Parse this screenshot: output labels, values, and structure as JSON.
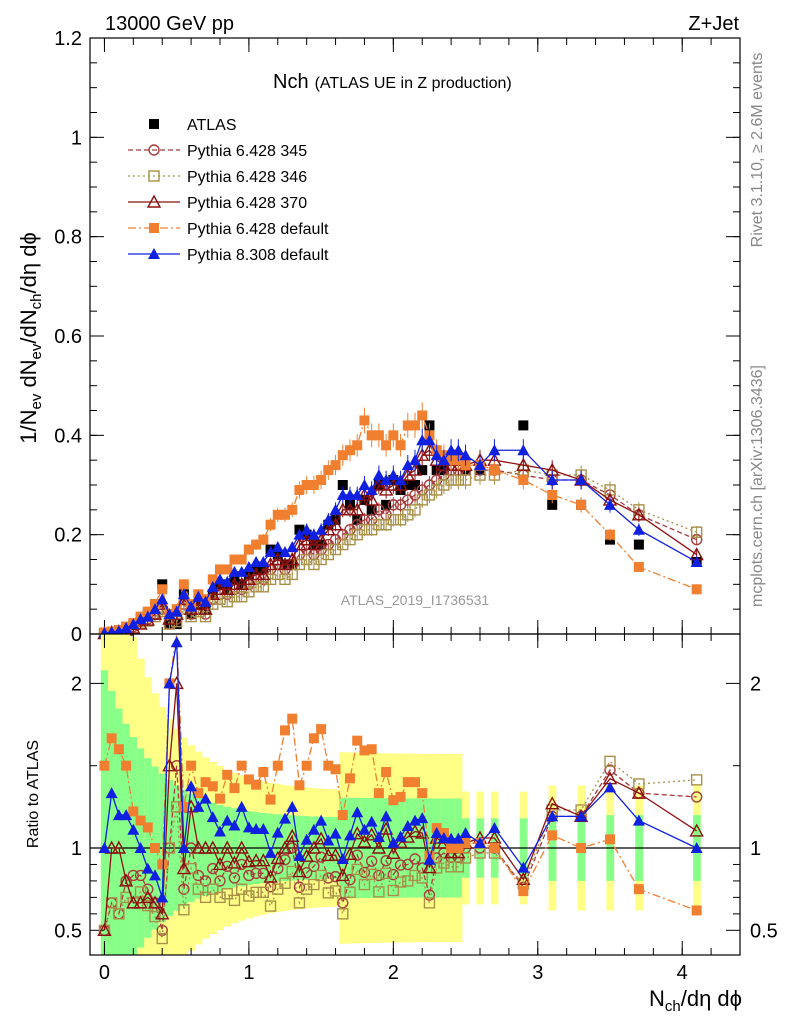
{
  "header": {
    "left": "13000 GeV pp",
    "right": "Z+Jet"
  },
  "side_notes": {
    "rivet": "Rivet 3.1.10, ≥ 2.6M events",
    "mcplots": "mcplots.cern.ch [arXiv:1306.3436]"
  },
  "watermark": "ATLAS_2019_I1736531",
  "colors": {
    "ATLAS": "#000000",
    "p345": "#a83b3b",
    "p346": "#a89048",
    "p370": "#8b1010",
    "p6def": "#f08030",
    "p8def": "#1020e0",
    "band_yellow": "#ffff88",
    "band_green": "#88ff88"
  },
  "chart_data": [
    {
      "type": "scatter",
      "title": "Nch",
      "title_suffix": "(ATLAS UE in Z production)",
      "xlabel": "N_ch/dη dϕ",
      "ylabel": "1/N_ev dN_ev/dN_ch/dη dϕ",
      "xlim": [
        -0.1,
        4.4
      ],
      "ylim": [
        0,
        1.2
      ],
      "yticks": [
        "0",
        "0.2",
        "0.4",
        "0.6",
        "0.8",
        "1",
        "1.2"
      ],
      "xticks": [
        "0",
        "1",
        "2",
        "3",
        "4"
      ],
      "legend_position": "top-left",
      "x": [
        0.0,
        0.05,
        0.1,
        0.15,
        0.2,
        0.25,
        0.3,
        0.35,
        0.4,
        0.45,
        0.5,
        0.55,
        0.6,
        0.65,
        0.7,
        0.75,
        0.8,
        0.85,
        0.9,
        0.95,
        1.0,
        1.05,
        1.1,
        1.15,
        1.2,
        1.25,
        1.3,
        1.35,
        1.4,
        1.45,
        1.5,
        1.55,
        1.6,
        1.65,
        1.7,
        1.75,
        1.8,
        1.85,
        1.9,
        1.95,
        2.0,
        2.05,
        2.1,
        2.15,
        2.2,
        2.25,
        2.3,
        2.35,
        2.4,
        2.45,
        2.5,
        2.6,
        2.7,
        2.9,
        3.1,
        3.3,
        3.5,
        3.7,
        4.1
      ],
      "series": [
        {
          "name": "ATLAS",
          "marker": "square-filled",
          "values": [
            0.002,
            0.003,
            0.005,
            0.01,
            0.018,
            0.03,
            0.04,
            0.06,
            0.1,
            0.02,
            0.02,
            0.08,
            0.04,
            0.06,
            0.05,
            0.08,
            0.1,
            0.09,
            0.11,
            0.1,
            0.12,
            0.13,
            0.13,
            0.17,
            0.16,
            0.14,
            0.14,
            0.21,
            0.2,
            0.18,
            0.18,
            0.22,
            0.23,
            0.3,
            0.26,
            0.23,
            0.27,
            0.25,
            0.3,
            0.26,
            0.31,
            0.29,
            0.3,
            0.3,
            0.33,
            0.42,
            0.33,
            0.33,
            0.35,
            0.35,
            0.33,
            0.33,
            0.33,
            0.42,
            0.26,
            0.26,
            0.19,
            0.18,
            0.145
          ]
        },
        {
          "name": "Pythia 6.428 345",
          "marker": "circle-open",
          "linestyle": "dashed",
          "values": [
            0.001,
            0.002,
            0.003,
            0.008,
            0.015,
            0.025,
            0.03,
            0.04,
            0.05,
            0.02,
            0.03,
            0.06,
            0.04,
            0.05,
            0.04,
            0.07,
            0.08,
            0.08,
            0.09,
            0.09,
            0.1,
            0.11,
            0.11,
            0.13,
            0.14,
            0.13,
            0.14,
            0.16,
            0.17,
            0.16,
            0.17,
            0.18,
            0.19,
            0.2,
            0.21,
            0.22,
            0.23,
            0.23,
            0.25,
            0.24,
            0.26,
            0.26,
            0.27,
            0.28,
            0.29,
            0.3,
            0.31,
            0.32,
            0.33,
            0.33,
            0.33,
            0.33,
            0.33,
            0.32,
            0.31,
            0.31,
            0.28,
            0.24,
            0.19
          ]
        },
        {
          "name": "Pythia 6.428 346",
          "marker": "square-open",
          "linestyle": "dotted",
          "values": [
            0.001,
            0.002,
            0.003,
            0.007,
            0.012,
            0.022,
            0.026,
            0.035,
            0.045,
            0.02,
            0.025,
            0.05,
            0.035,
            0.045,
            0.035,
            0.06,
            0.07,
            0.065,
            0.075,
            0.075,
            0.085,
            0.095,
            0.095,
            0.11,
            0.12,
            0.11,
            0.12,
            0.14,
            0.15,
            0.14,
            0.15,
            0.16,
            0.17,
            0.18,
            0.19,
            0.2,
            0.21,
            0.21,
            0.22,
            0.22,
            0.23,
            0.23,
            0.24,
            0.25,
            0.27,
            0.28,
            0.29,
            0.3,
            0.31,
            0.31,
            0.31,
            0.32,
            0.32,
            0.33,
            0.32,
            0.32,
            0.29,
            0.25,
            0.205
          ]
        },
        {
          "name": "Pythia 6.428 370",
          "marker": "triangle-open",
          "linestyle": "solid",
          "values": [
            0.001,
            0.003,
            0.005,
            0.008,
            0.012,
            0.02,
            0.028,
            0.04,
            0.06,
            0.03,
            0.04,
            0.07,
            0.05,
            0.06,
            0.05,
            0.08,
            0.09,
            0.09,
            0.1,
            0.1,
            0.11,
            0.12,
            0.12,
            0.14,
            0.15,
            0.14,
            0.15,
            0.18,
            0.19,
            0.18,
            0.19,
            0.21,
            0.22,
            0.25,
            0.25,
            0.25,
            0.28,
            0.27,
            0.3,
            0.29,
            0.3,
            0.3,
            0.32,
            0.33,
            0.36,
            0.37,
            0.35,
            0.34,
            0.34,
            0.34,
            0.34,
            0.35,
            0.35,
            0.34,
            0.33,
            0.31,
            0.27,
            0.24,
            0.16
          ]
        },
        {
          "name": "Pythia 6.428 default",
          "marker": "square-filled",
          "linestyle": "dashdot",
          "values": [
            0.003,
            0.005,
            0.008,
            0.015,
            0.022,
            0.035,
            0.045,
            0.06,
            0.09,
            0.04,
            0.05,
            0.1,
            0.06,
            0.08,
            0.07,
            0.11,
            0.13,
            0.13,
            0.15,
            0.15,
            0.17,
            0.18,
            0.19,
            0.22,
            0.24,
            0.24,
            0.25,
            0.29,
            0.3,
            0.3,
            0.31,
            0.33,
            0.34,
            0.36,
            0.37,
            0.38,
            0.43,
            0.4,
            0.4,
            0.38,
            0.4,
            0.38,
            0.42,
            0.42,
            0.44,
            0.4,
            0.37,
            0.36,
            0.35,
            0.35,
            0.34,
            0.34,
            0.33,
            0.31,
            0.28,
            0.26,
            0.2,
            0.135,
            0.09
          ]
        },
        {
          "name": "Pythia 8.308 default",
          "marker": "triangle-filled",
          "linestyle": "solid",
          "values": [
            0.002,
            0.004,
            0.006,
            0.012,
            0.02,
            0.03,
            0.035,
            0.05,
            0.07,
            0.04,
            0.045,
            0.08,
            0.055,
            0.075,
            0.065,
            0.095,
            0.11,
            0.105,
            0.125,
            0.125,
            0.135,
            0.145,
            0.145,
            0.165,
            0.175,
            0.165,
            0.175,
            0.2,
            0.21,
            0.2,
            0.21,
            0.23,
            0.25,
            0.28,
            0.28,
            0.28,
            0.3,
            0.29,
            0.32,
            0.31,
            0.32,
            0.31,
            0.34,
            0.35,
            0.39,
            0.39,
            0.36,
            0.35,
            0.37,
            0.37,
            0.36,
            0.34,
            0.37,
            0.37,
            0.31,
            0.31,
            0.26,
            0.21,
            0.145
          ]
        }
      ]
    },
    {
      "type": "scatter",
      "title": "",
      "ylabel": "Ratio to ATLAS",
      "ylim": [
        0.35,
        2.3
      ],
      "ytick_values": [
        0.5,
        1,
        2
      ],
      "yticks": [
        "0.5",
        "1",
        "2"
      ],
      "reference_line": 1
    }
  ]
}
